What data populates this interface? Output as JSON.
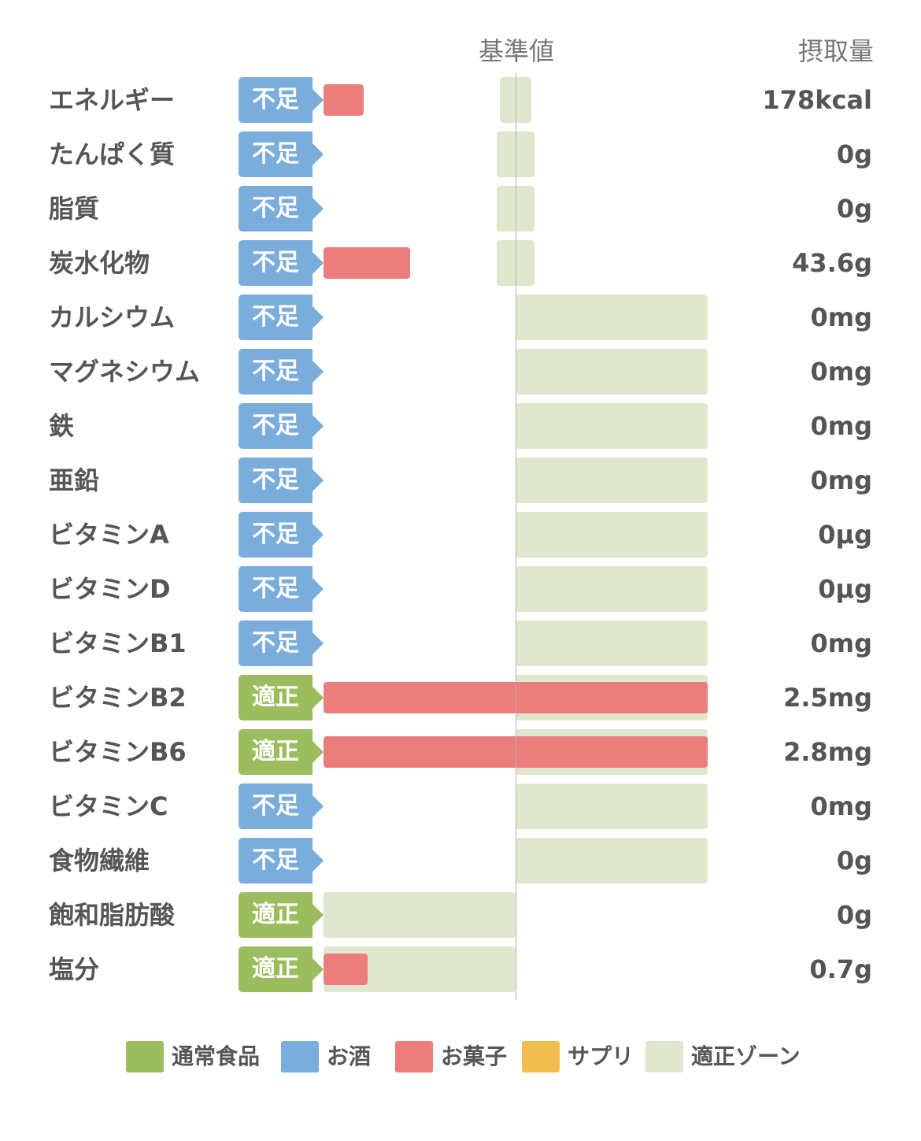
{
  "chart_data": {
    "type": "bar",
    "header": {
      "baseline_label": "基準値",
      "intake_label": "摂取量"
    },
    "status_colors": {
      "不足": "#7aacdc",
      "適正": "#9cbd5d"
    },
    "rows": [
      {
        "name": "エネルギー",
        "status": "不足",
        "value": "178kcal",
        "intake_ratio": 0.21,
        "zone": [
          0.92,
          1.08
        ]
      },
      {
        "name": "たんぱく質",
        "status": "不足",
        "value": "0g",
        "intake_ratio": 0,
        "zone": [
          0.9,
          1.1
        ]
      },
      {
        "name": "脂質",
        "status": "不足",
        "value": "0g",
        "intake_ratio": 0,
        "zone": [
          0.9,
          1.1
        ]
      },
      {
        "name": "炭水化物",
        "status": "不足",
        "value": "43.6g",
        "intake_ratio": 0.45,
        "zone": [
          0.9,
          1.1
        ]
      },
      {
        "name": "カルシウム",
        "status": "不足",
        "value": "0mg",
        "intake_ratio": 0,
        "zone": [
          1.0,
          2.0
        ]
      },
      {
        "name": "マグネシウム",
        "status": "不足",
        "value": "0mg",
        "intake_ratio": 0,
        "zone": [
          1.0,
          2.0
        ]
      },
      {
        "name": "鉄",
        "status": "不足",
        "value": "0mg",
        "intake_ratio": 0,
        "zone": [
          1.0,
          2.0
        ]
      },
      {
        "name": "亜鉛",
        "status": "不足",
        "value": "0mg",
        "intake_ratio": 0,
        "zone": [
          1.0,
          2.0
        ]
      },
      {
        "name": "ビタミンA",
        "status": "不足",
        "value": "0μg",
        "intake_ratio": 0,
        "zone": [
          1.0,
          2.0
        ]
      },
      {
        "name": "ビタミンD",
        "status": "不足",
        "value": "0μg",
        "intake_ratio": 0,
        "zone": [
          1.0,
          2.0
        ]
      },
      {
        "name": "ビタミンB1",
        "status": "不足",
        "value": "0mg",
        "intake_ratio": 0,
        "zone": [
          1.0,
          2.0
        ]
      },
      {
        "name": "ビタミンB2",
        "status": "適正",
        "value": "2.5mg",
        "intake_ratio": 2.0,
        "zone": [
          1.0,
          2.0
        ]
      },
      {
        "name": "ビタミンB6",
        "status": "適正",
        "value": "2.8mg",
        "intake_ratio": 2.0,
        "zone": [
          1.0,
          2.0
        ]
      },
      {
        "name": "ビタミンC",
        "status": "不足",
        "value": "0mg",
        "intake_ratio": 0,
        "zone": [
          1.0,
          2.0
        ]
      },
      {
        "name": "食物繊維",
        "status": "不足",
        "value": "0g",
        "intake_ratio": 0,
        "zone": [
          1.0,
          2.0
        ]
      },
      {
        "name": "飽和脂肪酸",
        "status": "適正",
        "value": "0g",
        "intake_ratio": 0,
        "zone": [
          0.0,
          1.0
        ]
      },
      {
        "name": "塩分",
        "status": "適正",
        "value": "0.7g",
        "intake_ratio": 0.23,
        "zone": [
          0.0,
          1.0
        ]
      }
    ],
    "legend": [
      {
        "label": "通常食品",
        "color": "#9cbd5d"
      },
      {
        "label": "お酒",
        "color": "#7aacdc"
      },
      {
        "label": "お菓子",
        "color": "#ec7d7d"
      },
      {
        "label": "サプリ",
        "color": "#f1bd50"
      },
      {
        "label": "適正ゾーン",
        "color": "#dfe8cd"
      }
    ],
    "bar_color": "#ec7d7d",
    "zone_color": "#dfe8cd"
  }
}
